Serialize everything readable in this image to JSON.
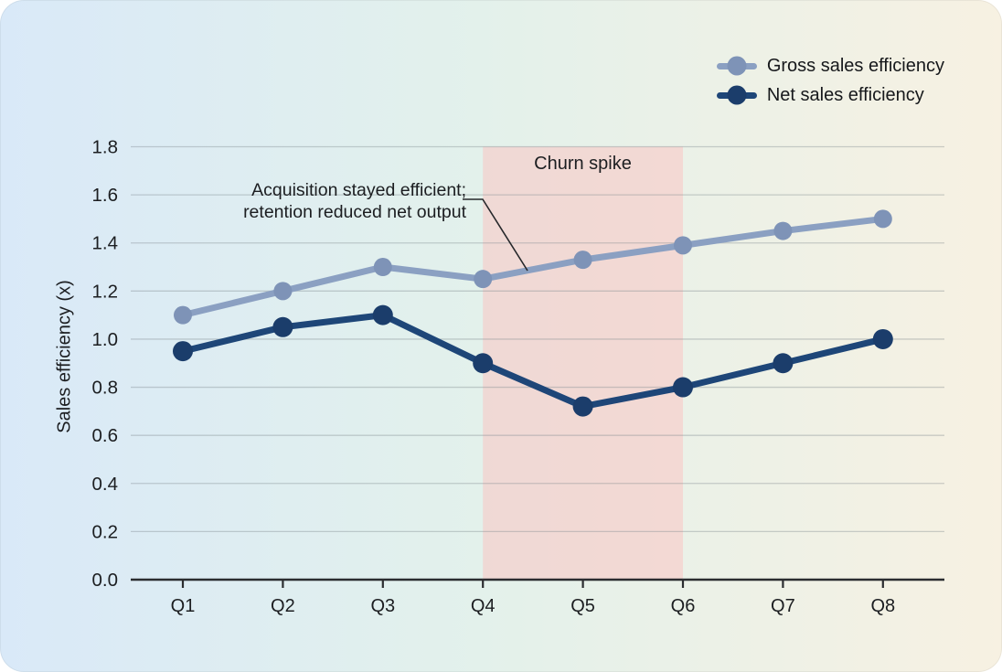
{
  "chart_data": {
    "type": "line",
    "categories": [
      "Q1",
      "Q2",
      "Q3",
      "Q4",
      "Q5",
      "Q6",
      "Q7",
      "Q8"
    ],
    "series": [
      {
        "name": "Gross sales efficiency",
        "values": [
          1.1,
          1.2,
          1.3,
          1.25,
          1.33,
          1.39,
          1.45,
          1.5
        ],
        "line_color": "#8ba0c2",
        "marker_color": "#7e93b7"
      },
      {
        "name": "Net sales efficiency",
        "values": [
          0.95,
          1.05,
          1.1,
          0.9,
          0.72,
          0.8,
          0.9,
          1.0
        ],
        "line_color": "#1e4678",
        "marker_color": "#1b3d6b"
      }
    ],
    "title": "",
    "xlabel": "",
    "ylabel": "Sales efficiency (x)",
    "ylim": [
      0,
      1.8
    ],
    "yticks": [
      "0.0",
      "0.2",
      "0.4",
      "0.6",
      "0.8",
      "1.0",
      "1.2",
      "1.4",
      "1.6",
      "1.8"
    ],
    "grid": true,
    "legend_position": "top-right",
    "band": {
      "label": "Churn spike",
      "from": "Q4",
      "to": "Q6",
      "color": "rgba(252,193,192,0.5)"
    },
    "annotation": {
      "line1": "Acquisition stayed efficient;",
      "line2": "retention reduced net output"
    },
    "colors": {
      "axis": "#2b2d30",
      "tick_text": "#1c1e21",
      "gridline": "rgba(125,138,142,0.38)",
      "leader_line": "#26282b",
      "background_left": "#d9e9f8",
      "background_mid": "#e3f1eb",
      "background_right": "#f7f1e2"
    }
  }
}
